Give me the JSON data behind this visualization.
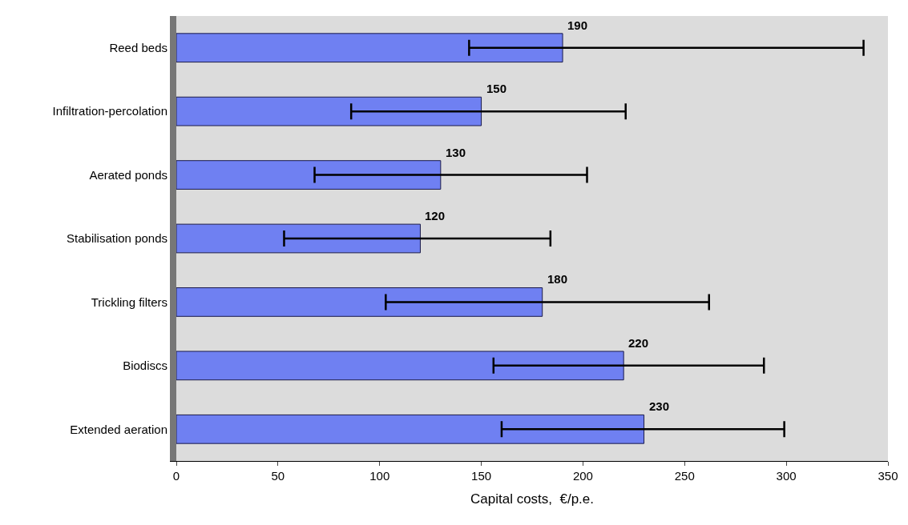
{
  "chart_data": {
    "type": "bar",
    "orientation": "horizontal",
    "xlabel": "Capital costs,  €/p.e.",
    "categories": [
      "Reed beds",
      "Infiltration-percolation",
      "Aerated ponds",
      "Stabilisation ponds",
      "Trickling filters",
      "Biodiscs",
      "Extended aeration"
    ],
    "values": [
      190,
      150,
      130,
      120,
      180,
      220,
      230
    ],
    "errors": [
      [
        144,
        338
      ],
      [
        86,
        221
      ],
      [
        68,
        202
      ],
      [
        53,
        184
      ],
      [
        103,
        262
      ],
      [
        156,
        289
      ],
      [
        160,
        299
      ]
    ],
    "color": "#6f80f2",
    "data_labels": true,
    "xlim": [
      0,
      350
    ],
    "xticks": [
      0,
      50,
      100,
      150,
      200,
      250,
      300,
      350
    ],
    "grid": false,
    "legend": false
  }
}
